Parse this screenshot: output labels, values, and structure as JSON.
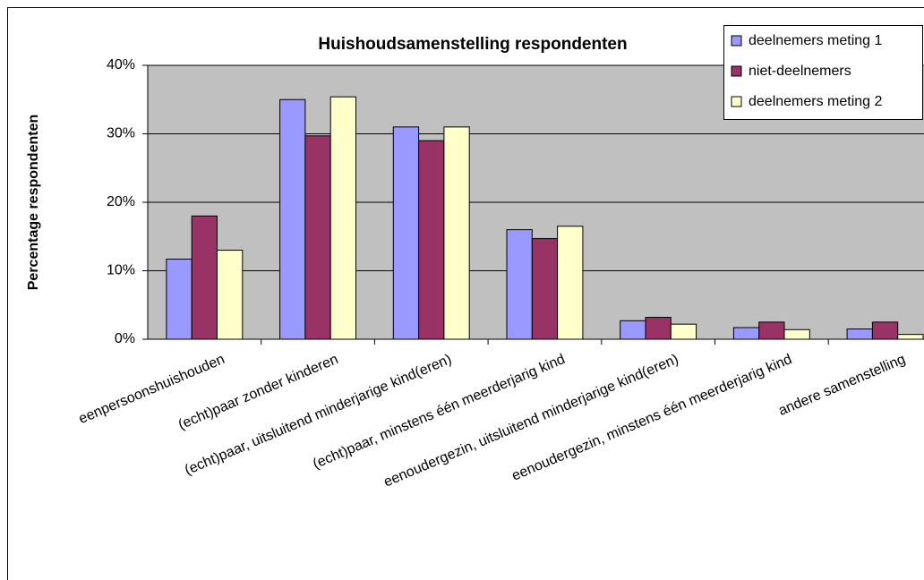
{
  "chart_data": {
    "type": "bar",
    "title": "Huishoudsamenstelling respondenten",
    "y_label": "Percentage respondenten",
    "categories": [
      "eenpersoonshuishouden",
      "(echt)paar zonder kinderen",
      "(echt)paar, uitsluitend minderjarige kind(eren)",
      "(echt)paar, minstens één meerderjarig kind",
      "eenoudergezin, uitsluitend minderjarige kind(eren)",
      "eenoudergezin, minstens één meerderjarig kind",
      "andere samenstelling"
    ],
    "series": [
      {
        "name": "deelnemers meting 1",
        "color": "#9999ff",
        "values": [
          11.7,
          35,
          31,
          16,
          2.7,
          1.7,
          1.5
        ]
      },
      {
        "name": "niet-deelnemers",
        "color": "#993366",
        "values": [
          18,
          29.7,
          29,
          14.7,
          3.2,
          2.5,
          2.5
        ]
      },
      {
        "name": "deelnemers meting 2",
        "color": "#ffffcc",
        "values": [
          13,
          35.4,
          31,
          16.5,
          2.2,
          1.4,
          0.7
        ]
      }
    ],
    "ylim": [
      0,
      40
    ],
    "yticks": [
      {
        "value": 0,
        "label": "0%"
      },
      {
        "value": 10,
        "label": "10%"
      },
      {
        "value": 20,
        "label": "20%"
      },
      {
        "value": 30,
        "label": "30%"
      },
      {
        "value": 40,
        "label": "40%"
      }
    ],
    "grid": true,
    "legend": "upper right",
    "plot_background": "#c0c0c0"
  }
}
